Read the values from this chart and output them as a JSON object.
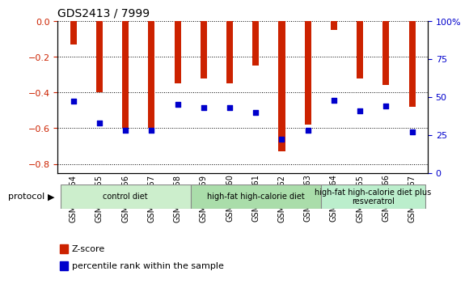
{
  "title": "GDS2413 / 7999",
  "samples": [
    "GSM140954",
    "GSM140955",
    "GSM140956",
    "GSM140957",
    "GSM140958",
    "GSM140959",
    "GSM140960",
    "GSM140961",
    "GSM140962",
    "GSM140963",
    "GSM140964",
    "GSM140965",
    "GSM140966",
    "GSM140967"
  ],
  "z_scores": [
    -0.13,
    -0.4,
    -0.6,
    -0.6,
    -0.35,
    -0.32,
    -0.35,
    -0.25,
    -0.73,
    -0.58,
    -0.05,
    -0.32,
    -0.36,
    -0.48
  ],
  "percentile_ranks": [
    47,
    33,
    28,
    28,
    45,
    43,
    43,
    40,
    22,
    28,
    48,
    41,
    44,
    27
  ],
  "bar_color": "#cc2200",
  "dot_color": "#0000cc",
  "ylim_left": [
    -0.85,
    0.0
  ],
  "yticks_left": [
    0.0,
    -0.2,
    -0.4,
    -0.6,
    -0.8
  ],
  "yticks_right": [
    0,
    25,
    50,
    75,
    100
  ],
  "group_bounds": [
    {
      "start": 0,
      "end": 4,
      "color": "#cceecc",
      "label": "control diet"
    },
    {
      "start": 5,
      "end": 9,
      "color": "#aaddaa",
      "label": "high-fat high-calorie diet"
    },
    {
      "start": 10,
      "end": 13,
      "color": "#bbeecc",
      "label": "high-fat high-calorie diet plus\nresveratrol"
    }
  ],
  "bar_width": 0.25
}
